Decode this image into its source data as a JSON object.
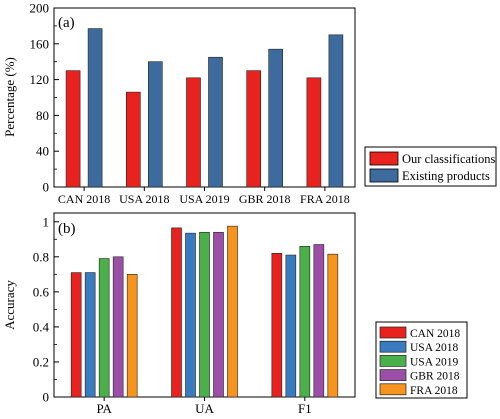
{
  "chart_data": [
    {
      "type": "bar",
      "panel_label": "(a)",
      "categories": [
        "CAN 2018",
        "USA 2018",
        "USA 2019",
        "GBR 2018",
        "FRA 2018"
      ],
      "series": [
        {
          "name": "Our classifications",
          "color": "#e8231f",
          "values": [
            130,
            106,
            122,
            130,
            122
          ]
        },
        {
          "name": "Existing products",
          "color": "#3e6b9d",
          "values": [
            177,
            140,
            145,
            154,
            170
          ]
        }
      ],
      "xlabel": "",
      "ylabel": "Percentage (%)",
      "ylim": [
        0,
        200
      ],
      "yticks": [
        0,
        40,
        80,
        120,
        160,
        200
      ],
      "grid": false,
      "legend_position": "outside-right"
    },
    {
      "type": "bar",
      "panel_label": "(b)",
      "categories": [
        "PA",
        "UA",
        "F1"
      ],
      "series": [
        {
          "name": "CAN 2018",
          "color": "#e8231f",
          "values": [
            0.71,
            0.965,
            0.82
          ]
        },
        {
          "name": "USA 2018",
          "color": "#3a7bbf",
          "values": [
            0.71,
            0.935,
            0.81
          ]
        },
        {
          "name": "USA 2019",
          "color": "#4cb04a",
          "values": [
            0.79,
            0.94,
            0.86
          ]
        },
        {
          "name": "GBR 2018",
          "color": "#9b4fa6",
          "values": [
            0.8,
            0.94,
            0.87
          ]
        },
        {
          "name": "FRA 2018",
          "color": "#f7941d",
          "values": [
            0.7,
            0.975,
            0.815
          ]
        }
      ],
      "xlabel": "",
      "ylabel": "Accuracy",
      "ylim": [
        0,
        1.05
      ],
      "yticks": [
        0,
        0.2,
        0.4,
        0.6,
        0.8,
        1
      ],
      "grid": false,
      "legend_position": "outside-right"
    }
  ]
}
